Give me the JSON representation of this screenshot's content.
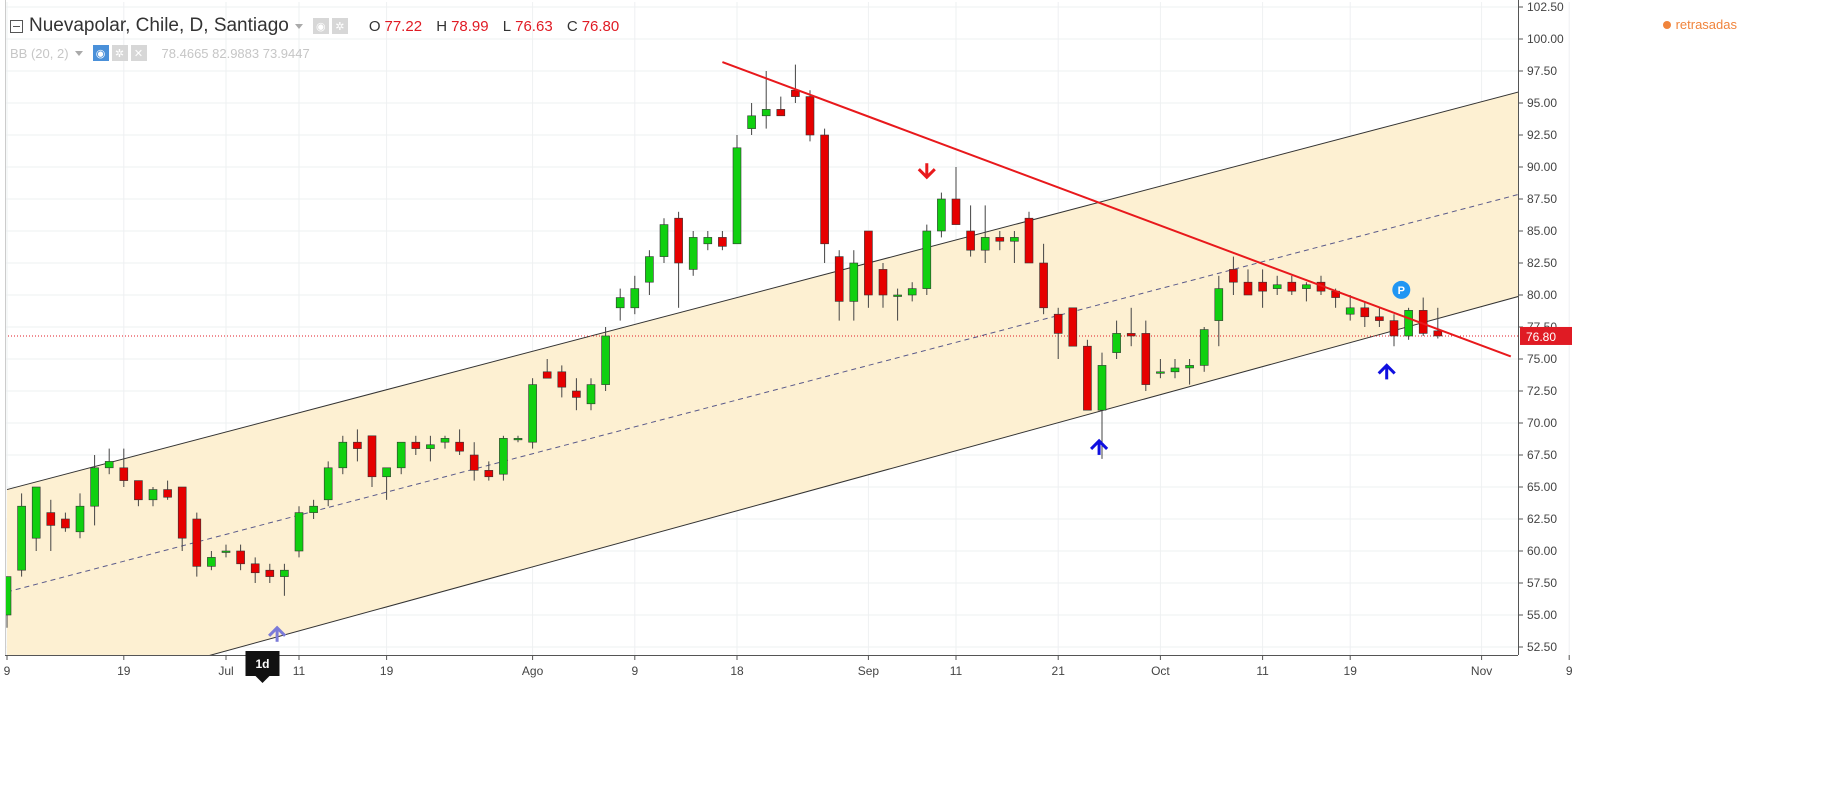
{
  "header": {
    "symbol": "Nuevapolar, Chile, D, Santiago",
    "ohlc": [
      {
        "k": "O",
        "v": "77.22"
      },
      {
        "k": "H",
        "v": "78.99"
      },
      {
        "k": "L",
        "v": "76.63"
      },
      {
        "k": "C",
        "v": "76.80"
      }
    ],
    "indicator_name": "BB (20, 2)",
    "indicator_values": "78.4665 82.9883 73.9447",
    "status": "retrasadas"
  },
  "icons": [
    "collapse-icon",
    "settings-icon",
    "visibility-icon",
    "close-icon"
  ],
  "colors": {
    "up": "#10d010",
    "down": "#e60000",
    "wick": "#444444",
    "channel_fill": "#fdf0d2",
    "trendline": "#e8191c",
    "arrow_up": "#1010e0",
    "arrow_up_faded": "#7b7bd8",
    "arrow_down": "#e8191c",
    "price_tag": "#e01b24",
    "marker_p": "#2196f3"
  },
  "chart_data": {
    "type": "candlestick",
    "ylim": [
      52.5,
      102.5
    ],
    "y_ticks": [
      "102.50",
      "100.00",
      "97.50",
      "95.00",
      "92.50",
      "90.00",
      "87.50",
      "85.00",
      "82.50",
      "80.00",
      "77.50",
      "75.00",
      "72.50",
      "70.00",
      "67.50",
      "65.00",
      "62.50",
      "60.00",
      "57.50",
      "55.00",
      "52.50"
    ],
    "x_labels": [
      {
        "label": "9",
        "day": 0
      },
      {
        "label": "19",
        "day": 8
      },
      {
        "label": "Jul",
        "day": 15
      },
      {
        "label": "11",
        "day": 20
      },
      {
        "label": "19",
        "day": 26
      },
      {
        "label": "Ago",
        "day": 36
      },
      {
        "label": "9",
        "day": 43
      },
      {
        "label": "18",
        "day": 50
      },
      {
        "label": "Sep",
        "day": 59
      },
      {
        "label": "11",
        "day": 65
      },
      {
        "label": "21",
        "day": 72
      },
      {
        "label": "Oct",
        "day": 79
      },
      {
        "label": "11",
        "day": 86
      },
      {
        "label": "19",
        "day": 92
      },
      {
        "label": "Nov",
        "day": 101
      },
      {
        "label": "9",
        "day": 107
      }
    ],
    "last_price": "76.80",
    "interval_label": "1d",
    "candles": [
      {
        "o": 55.0,
        "h": 58.0,
        "l": 54.0,
        "c": 58.0
      },
      {
        "o": 58.5,
        "h": 64.5,
        "l": 58.0,
        "c": 63.5
      },
      {
        "o": 61.0,
        "h": 65.0,
        "l": 60.0,
        "c": 65.0
      },
      {
        "o": 63.0,
        "h": 64.0,
        "l": 60.0,
        "c": 62.0
      },
      {
        "o": 62.5,
        "h": 63.0,
        "l": 61.5,
        "c": 61.8
      },
      {
        "o": 61.5,
        "h": 64.5,
        "l": 61.0,
        "c": 63.5
      },
      {
        "o": 63.5,
        "h": 67.5,
        "l": 62.0,
        "c": 66.5
      },
      {
        "o": 66.5,
        "h": 68.0,
        "l": 66.0,
        "c": 67.0
      },
      {
        "o": 66.5,
        "h": 68.0,
        "l": 65.0,
        "c": 65.5
      },
      {
        "o": 65.5,
        "h": 65.5,
        "l": 63.5,
        "c": 64.0
      },
      {
        "o": 64.0,
        "h": 65.0,
        "l": 63.5,
        "c": 64.8
      },
      {
        "o": 64.8,
        "h": 65.5,
        "l": 64.0,
        "c": 64.2
      },
      {
        "o": 65.0,
        "h": 65.0,
        "l": 60.0,
        "c": 61.0
      },
      {
        "o": 62.5,
        "h": 63.0,
        "l": 58.0,
        "c": 58.8
      },
      {
        "o": 58.8,
        "h": 60.0,
        "l": 58.5,
        "c": 59.5
      },
      {
        "o": 60.0,
        "h": 60.5,
        "l": 59.5,
        "c": 60.0
      },
      {
        "o": 60.0,
        "h": 60.5,
        "l": 58.5,
        "c": 59.0
      },
      {
        "o": 59.0,
        "h": 59.5,
        "l": 57.5,
        "c": 58.3
      },
      {
        "o": 58.5,
        "h": 59.0,
        "l": 57.5,
        "c": 58.0
      },
      {
        "o": 58.0,
        "h": 59.0,
        "l": 56.5,
        "c": 58.5
      },
      {
        "o": 60.0,
        "h": 63.5,
        "l": 59.5,
        "c": 63.0
      },
      {
        "o": 63.0,
        "h": 64.0,
        "l": 62.5,
        "c": 63.5
      },
      {
        "o": 64.0,
        "h": 67.0,
        "l": 63.5,
        "c": 66.5
      },
      {
        "o": 66.5,
        "h": 69.0,
        "l": 66.0,
        "c": 68.5
      },
      {
        "o": 68.5,
        "h": 69.5,
        "l": 67.0,
        "c": 68.0
      },
      {
        "o": 69.0,
        "h": 69.0,
        "l": 65.0,
        "c": 65.8
      },
      {
        "o": 65.8,
        "h": 66.5,
        "l": 64.0,
        "c": 66.5
      },
      {
        "o": 66.5,
        "h": 68.5,
        "l": 66.0,
        "c": 68.5
      },
      {
        "o": 68.5,
        "h": 69.0,
        "l": 67.5,
        "c": 68.0
      },
      {
        "o": 68.0,
        "h": 69.0,
        "l": 67.0,
        "c": 68.3
      },
      {
        "o": 68.5,
        "h": 69.0,
        "l": 68.0,
        "c": 68.8
      },
      {
        "o": 68.5,
        "h": 69.5,
        "l": 67.5,
        "c": 67.8
      },
      {
        "o": 67.5,
        "h": 68.5,
        "l": 65.5,
        "c": 66.3
      },
      {
        "o": 66.3,
        "h": 67.0,
        "l": 65.5,
        "c": 65.8
      },
      {
        "o": 66.0,
        "h": 69.0,
        "l": 65.5,
        "c": 68.8
      },
      {
        "o": 68.8,
        "h": 69.0,
        "l": 68.5,
        "c": 68.8
      },
      {
        "o": 68.5,
        "h": 73.5,
        "l": 68.0,
        "c": 73.0
      },
      {
        "o": 74.0,
        "h": 75.0,
        "l": 73.5,
        "c": 73.5
      },
      {
        "o": 74.0,
        "h": 74.5,
        "l": 72.0,
        "c": 72.8
      },
      {
        "o": 72.5,
        "h": 73.5,
        "l": 71.0,
        "c": 72.0
      },
      {
        "o": 71.5,
        "h": 73.5,
        "l": 71.0,
        "c": 73.0
      },
      {
        "o": 73.0,
        "h": 77.5,
        "l": 72.5,
        "c": 76.8
      },
      {
        "o": 79.0,
        "h": 80.5,
        "l": 78.0,
        "c": 79.8
      },
      {
        "o": 79.0,
        "h": 81.5,
        "l": 78.5,
        "c": 80.5
      },
      {
        "o": 81.0,
        "h": 83.5,
        "l": 80.0,
        "c": 83.0
      },
      {
        "o": 83.0,
        "h": 86.0,
        "l": 82.5,
        "c": 85.5
      },
      {
        "o": 86.0,
        "h": 86.5,
        "l": 79.0,
        "c": 82.5
      },
      {
        "o": 82.0,
        "h": 85.0,
        "l": 81.5,
        "c": 84.5
      },
      {
        "o": 84.0,
        "h": 85.0,
        "l": 83.5,
        "c": 84.5
      },
      {
        "o": 84.5,
        "h": 85.0,
        "l": 83.5,
        "c": 83.8
      },
      {
        "o": 84.0,
        "h": 92.5,
        "l": 84.0,
        "c": 91.5
      },
      {
        "o": 93.0,
        "h": 95.0,
        "l": 92.5,
        "c": 94.0
      },
      {
        "o": 94.0,
        "h": 97.5,
        "l": 93.0,
        "c": 94.5
      },
      {
        "o": 94.5,
        "h": 95.5,
        "l": 94.0,
        "c": 94.0
      },
      {
        "o": 96.0,
        "h": 98.0,
        "l": 95.0,
        "c": 95.5
      },
      {
        "o": 95.5,
        "h": 96.0,
        "l": 92.0,
        "c": 92.5
      },
      {
        "o": 92.5,
        "h": 93.0,
        "l": 82.5,
        "c": 84.0
      },
      {
        "o": 83.0,
        "h": 83.5,
        "l": 78.0,
        "c": 79.5
      },
      {
        "o": 79.5,
        "h": 83.5,
        "l": 78.0,
        "c": 82.5
      },
      {
        "o": 85.0,
        "h": 85.0,
        "l": 79.0,
        "c": 80.0
      },
      {
        "o": 82.0,
        "h": 82.5,
        "l": 79.0,
        "c": 80.0
      },
      {
        "o": 80.0,
        "h": 80.5,
        "l": 78.0,
        "c": 80.0
      },
      {
        "o": 80.0,
        "h": 81.0,
        "l": 79.5,
        "c": 80.5
      },
      {
        "o": 80.5,
        "h": 85.5,
        "l": 80.0,
        "c": 85.0
      },
      {
        "o": 85.0,
        "h": 88.0,
        "l": 84.5,
        "c": 87.5
      },
      {
        "o": 87.5,
        "h": 90.0,
        "l": 85.5,
        "c": 85.5
      },
      {
        "o": 85.0,
        "h": 87.0,
        "l": 83.0,
        "c": 83.5
      },
      {
        "o": 83.5,
        "h": 87.0,
        "l": 82.5,
        "c": 84.5
      },
      {
        "o": 84.5,
        "h": 85.0,
        "l": 83.5,
        "c": 84.2
      },
      {
        "o": 84.2,
        "h": 85.0,
        "l": 82.5,
        "c": 84.5
      },
      {
        "o": 86.0,
        "h": 86.5,
        "l": 82.5,
        "c": 82.5
      },
      {
        "o": 82.5,
        "h": 84.0,
        "l": 78.5,
        "c": 79.0
      },
      {
        "o": 78.5,
        "h": 79.0,
        "l": 75.0,
        "c": 77.0
      },
      {
        "o": 79.0,
        "h": 79.0,
        "l": 76.0,
        "c": 76.0
      },
      {
        "o": 76.0,
        "h": 76.5,
        "l": 71.0,
        "c": 71.0
      },
      {
        "o": 71.0,
        "h": 75.5,
        "l": 67.2,
        "c": 74.5
      },
      {
        "o": 75.5,
        "h": 78.0,
        "l": 75.0,
        "c": 77.0
      },
      {
        "o": 77.0,
        "h": 79.0,
        "l": 76.0,
        "c": 76.8
      },
      {
        "o": 77.0,
        "h": 78.0,
        "l": 72.5,
        "c": 73.0
      },
      {
        "o": 74.0,
        "h": 75.0,
        "l": 73.5,
        "c": 74.0
      },
      {
        "o": 74.0,
        "h": 75.0,
        "l": 73.5,
        "c": 74.3
      },
      {
        "o": 74.3,
        "h": 75.0,
        "l": 73.0,
        "c": 74.5
      },
      {
        "o": 74.5,
        "h": 77.5,
        "l": 74.0,
        "c": 77.3
      },
      {
        "o": 78.0,
        "h": 81.5,
        "l": 76.0,
        "c": 80.5
      },
      {
        "o": 82.0,
        "h": 83.0,
        "l": 80.0,
        "c": 81.0
      },
      {
        "o": 81.0,
        "h": 82.0,
        "l": 80.0,
        "c": 80.0
      },
      {
        "o": 81.0,
        "h": 82.0,
        "l": 79.0,
        "c": 80.3
      },
      {
        "o": 80.5,
        "h": 81.5,
        "l": 80.0,
        "c": 80.8
      },
      {
        "o": 81.0,
        "h": 81.5,
        "l": 80.0,
        "c": 80.3
      },
      {
        "o": 80.5,
        "h": 81.0,
        "l": 79.5,
        "c": 80.8
      },
      {
        "o": 81.0,
        "h": 81.5,
        "l": 80.0,
        "c": 80.3
      },
      {
        "o": 80.3,
        "h": 80.5,
        "l": 79.0,
        "c": 79.8
      },
      {
        "o": 78.5,
        "h": 80.0,
        "l": 78.0,
        "c": 79.0
      },
      {
        "o": 79.0,
        "h": 79.5,
        "l": 77.5,
        "c": 78.3
      },
      {
        "o": 78.3,
        "h": 79.0,
        "l": 77.5,
        "c": 78.0
      },
      {
        "o": 78.0,
        "h": 78.5,
        "l": 76.0,
        "c": 76.8
      },
      {
        "o": 76.8,
        "h": 79.0,
        "l": 76.5,
        "c": 78.8
      },
      {
        "o": 78.8,
        "h": 79.8,
        "l": 76.8,
        "c": 77.0
      },
      {
        "o": 77.2,
        "h": 79.0,
        "l": 76.6,
        "c": 76.8
      }
    ],
    "channel": {
      "upper": [
        [
          0,
          64.8
        ],
        [
          109,
          97.5
        ]
      ],
      "lower": [
        [
          0,
          47.5
        ],
        [
          109,
          81.6
        ]
      ],
      "mid": [
        [
          0,
          56.8
        ],
        [
          109,
          89.5
        ]
      ]
    },
    "trendline": [
      [
        49,
        98.2
      ],
      [
        103,
        75.2
      ]
    ],
    "arrows": [
      {
        "day": 18.5,
        "price": 54.0,
        "dir": "up",
        "faded": true
      },
      {
        "day": 63.0,
        "price": 89.2,
        "dir": "down",
        "faded": false
      },
      {
        "day": 74.8,
        "price": 68.6,
        "dir": "up",
        "faded": false
      },
      {
        "day": 94.5,
        "price": 74.5,
        "dir": "up",
        "faded": false
      }
    ],
    "marker": {
      "day": 95.5,
      "price": 80.4,
      "label": "P"
    }
  }
}
